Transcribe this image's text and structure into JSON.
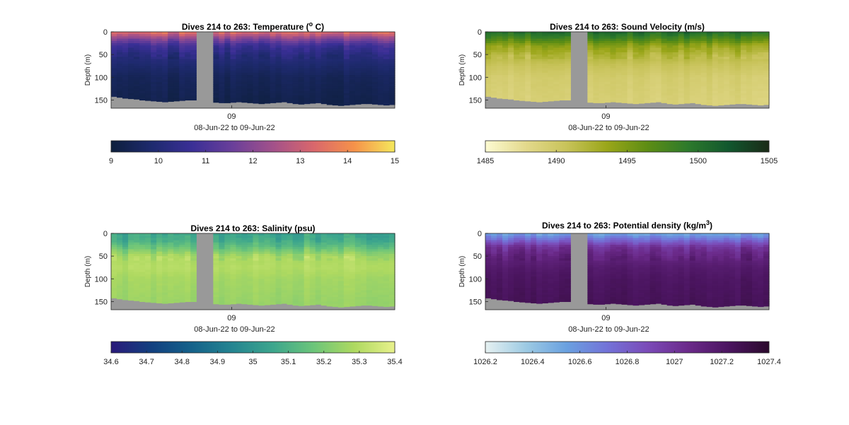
{
  "panels": [
    {
      "id": "temperature",
      "title_prefix": "Dives 214 to 263: Temperature (",
      "title_sup": "o",
      "title_suffix": " C)",
      "ylabel": "Depth (m)",
      "yticks": [
        "0",
        "50",
        "100",
        "150"
      ],
      "ytick_values": [
        0,
        50,
        100,
        150
      ],
      "ylim": [
        0,
        168
      ],
      "xtick": "09",
      "xlabel": "08-Jun-22 to 09-Jun-22",
      "colormap": "thermal",
      "colorbar": {
        "min": 9,
        "max": 15,
        "ticks": [
          "9",
          "10",
          "11",
          "12",
          "13",
          "14",
          "15"
        ]
      },
      "colorbar_colors": [
        "#0d1f3c",
        "#1e2a6e",
        "#3a2f96",
        "#6a3f9a",
        "#a3518a",
        "#d9676c",
        "#f6924a",
        "#f5e85c"
      ],
      "nodata_color": "#999999"
    },
    {
      "id": "sound-velocity",
      "title_prefix": "Dives 214 to 263: Sound Velocity (m/s)",
      "title_sup": "",
      "title_suffix": "",
      "ylabel": "Depth (m)",
      "yticks": [
        "0",
        "50",
        "100",
        "150"
      ],
      "ytick_values": [
        0,
        50,
        100,
        150
      ],
      "ylim": [
        0,
        168
      ],
      "xtick": "09",
      "xlabel": "08-Jun-22 to 09-Jun-22",
      "colormap": "speed",
      "colorbar": {
        "min": 1485,
        "max": 1505,
        "ticks": [
          "1485",
          "1490",
          "1495",
          "1500",
          "1505"
        ]
      },
      "colorbar_colors": [
        "#fdfbd2",
        "#e3d98c",
        "#c8c35a",
        "#9aa619",
        "#5d8d14",
        "#2d7a2c",
        "#12572e",
        "#1a2a17"
      ],
      "nodata_color": "#999999"
    },
    {
      "id": "salinity",
      "title_prefix": "Dives 214 to 263: Salinity (psu)",
      "title_sup": "",
      "title_suffix": "",
      "ylabel": "Depth (m)",
      "yticks": [
        "0",
        "50",
        "100",
        "150"
      ],
      "ytick_values": [
        0,
        50,
        100,
        150
      ],
      "ylim": [
        0,
        168
      ],
      "xtick": "09",
      "xlabel": "08-Jun-22 to 09-Jun-22",
      "colormap": "haline",
      "colorbar": {
        "min": 34.6,
        "max": 35.4,
        "ticks": [
          "34.6",
          "34.7",
          "34.8",
          "34.9",
          "35",
          "35.1",
          "35.2",
          "35.3",
          "35.4"
        ]
      },
      "colorbar_colors": [
        "#2a1a7a",
        "#12407f",
        "#15628a",
        "#258591",
        "#3da68d",
        "#6cc57a",
        "#aed960",
        "#e8f18c"
      ],
      "nodata_color": "#999999"
    },
    {
      "id": "potential-density",
      "title_prefix": "Dives 214 to 263: Potential density (kg/m",
      "title_sup": "3",
      "title_suffix": ")",
      "ylabel": "Depth (m)",
      "yticks": [
        "0",
        "50",
        "100",
        "150"
      ],
      "ytick_values": [
        0,
        50,
        100,
        150
      ],
      "ylim": [
        0,
        168
      ],
      "xtick": "09",
      "xlabel": "08-Jun-22 to 09-Jun-22",
      "colormap": "dense",
      "colorbar": {
        "min": 1026.2,
        "max": 1027.4,
        "ticks": [
          "1026.2",
          "1026.4",
          "1026.6",
          "1026.8",
          "1027",
          "1027.2",
          "1027.4"
        ]
      },
      "colorbar_colors": [
        "#e6f1f1",
        "#9dcae3",
        "#6aa1e0",
        "#7373d8",
        "#7b4bb8",
        "#6b2a8a",
        "#4b1560",
        "#2b0a2c"
      ],
      "nodata_color": "#999999"
    }
  ],
  "chart_data": [
    {
      "type": "heatmap",
      "title": "Dives 214 to 263: Temperature (o C)",
      "ylabel": "Depth (m)",
      "xlabel": "08-Jun-22 to 09-Jun-22",
      "ylim": [
        0,
        168
      ],
      "x_ticks": [
        "09"
      ],
      "y_reversed": true,
      "dives": [
        214,
        263
      ],
      "colorbar_range": [
        9,
        15
      ],
      "profile_depth_m": [
        0,
        15,
        30,
        50,
        75,
        100,
        150
      ],
      "profile_value": [
        13.5,
        12.0,
        10.8,
        10.2,
        9.8,
        9.5,
        9.3
      ],
      "max_depth_m_by_dive": [
        142,
        144,
        146,
        147,
        148,
        150,
        151,
        152,
        153,
        154,
        153,
        152,
        151,
        150,
        150,
        152,
        153,
        154,
        155,
        156,
        156,
        155,
        154,
        155,
        156,
        157,
        158,
        157,
        156,
        155,
        154,
        156,
        158,
        159,
        158,
        157,
        156,
        158,
        160,
        161,
        162,
        161,
        160,
        159,
        158,
        158,
        159,
        160,
        161,
        160
      ],
      "data_gap_dives": [
        229,
        231
      ]
    },
    {
      "type": "heatmap",
      "title": "Dives 214 to 263: Sound Velocity (m/s)",
      "ylabel": "Depth (m)",
      "xlabel": "08-Jun-22 to 09-Jun-22",
      "ylim": [
        0,
        168
      ],
      "x_ticks": [
        "09"
      ],
      "y_reversed": true,
      "dives": [
        214,
        263
      ],
      "colorbar_range": [
        1485,
        1505
      ],
      "profile_depth_m": [
        0,
        15,
        30,
        50,
        75,
        100,
        150
      ],
      "profile_value": [
        1500.5,
        1497.5,
        1494,
        1492,
        1490.5,
        1489.5,
        1489
      ],
      "max_depth_m_by_dive": [
        142,
        144,
        146,
        147,
        148,
        150,
        151,
        152,
        153,
        154,
        153,
        152,
        151,
        150,
        150,
        152,
        153,
        154,
        155,
        156,
        156,
        155,
        154,
        155,
        156,
        157,
        158,
        157,
        156,
        155,
        154,
        156,
        158,
        159,
        158,
        157,
        156,
        158,
        160,
        161,
        162,
        161,
        160,
        159,
        158,
        158,
        159,
        160,
        161,
        160
      ],
      "data_gap_dives": [
        229,
        231
      ]
    },
    {
      "type": "heatmap",
      "title": "Dives 214 to 263: Salinity (psu)",
      "ylabel": "Depth (m)",
      "xlabel": "08-Jun-22 to 09-Jun-22",
      "ylim": [
        0,
        168
      ],
      "x_ticks": [
        "09"
      ],
      "y_reversed": true,
      "dives": [
        214,
        263
      ],
      "colorbar_range": [
        34.6,
        35.4
      ],
      "profile_depth_m": [
        0,
        15,
        30,
        50,
        75,
        100,
        150
      ],
      "profile_value": [
        35.05,
        35.08,
        35.15,
        35.28,
        35.3,
        35.27,
        35.25
      ],
      "max_depth_m_by_dive": [
        142,
        144,
        146,
        147,
        148,
        150,
        151,
        152,
        153,
        154,
        153,
        152,
        151,
        150,
        150,
        152,
        153,
        154,
        155,
        156,
        156,
        155,
        154,
        155,
        156,
        157,
        158,
        157,
        156,
        155,
        154,
        156,
        158,
        159,
        158,
        157,
        156,
        158,
        160,
        161,
        162,
        161,
        160,
        159,
        158,
        158,
        159,
        160,
        161,
        160
      ],
      "data_gap_dives": [
        229,
        231
      ]
    },
    {
      "type": "heatmap",
      "title": "Dives 214 to 263: Potential density (kg/m3)",
      "ylabel": "Depth (m)",
      "xlabel": "08-Jun-22 to 09-Jun-22",
      "ylim": [
        0,
        168
      ],
      "x_ticks": [
        "09"
      ],
      "y_reversed": true,
      "dives": [
        214,
        263
      ],
      "colorbar_range": [
        1026.2,
        1027.4
      ],
      "profile_depth_m": [
        0,
        15,
        30,
        50,
        75,
        100,
        150
      ],
      "profile_value": [
        1026.5,
        1026.75,
        1027.0,
        1027.1,
        1027.18,
        1027.22,
        1027.25
      ],
      "max_depth_m_by_dive": [
        142,
        144,
        146,
        147,
        148,
        150,
        151,
        152,
        153,
        154,
        153,
        152,
        151,
        150,
        150,
        152,
        153,
        154,
        155,
        156,
        156,
        155,
        154,
        155,
        156,
        157,
        158,
        157,
        156,
        155,
        154,
        156,
        158,
        159,
        158,
        157,
        156,
        158,
        160,
        161,
        162,
        161,
        160,
        159,
        158,
        158,
        159,
        160,
        161,
        160
      ],
      "data_gap_dives": [
        229,
        231
      ]
    }
  ]
}
